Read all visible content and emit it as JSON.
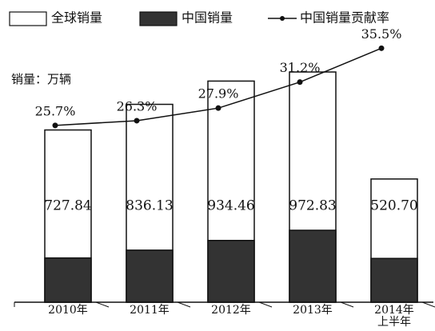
{
  "chart_data": {
    "type": "bar",
    "subtitle": "销量：万辆",
    "categories": [
      "2010年",
      "2011年",
      "2012年",
      "2013年",
      "2014年上半年"
    ],
    "series": [
      {
        "name": "全球销量",
        "color": "#ffffff",
        "values": [
          727.84,
          836.13,
          934.46,
          972.83,
          520.7
        ],
        "value_labels": [
          "727.84",
          "836.13",
          "934.46",
          "972.83",
          "520.70"
        ]
      },
      {
        "name": "中国销量",
        "color": "#333333",
        "values": [
          187,
          220,
          261,
          304,
          185
        ]
      },
      {
        "name": "中国销量贡献率",
        "type": "line",
        "axis": "y2",
        "color": "#111111",
        "values": [
          25.7,
          26.3,
          27.9,
          31.2,
          35.5
        ],
        "value_labels": [
          "25.7%",
          "26.3%",
          "27.9%",
          "31.2%",
          "35.5%"
        ]
      }
    ],
    "ylim": [
      0,
      1000
    ],
    "y2lim": [
      20,
      40
    ]
  }
}
